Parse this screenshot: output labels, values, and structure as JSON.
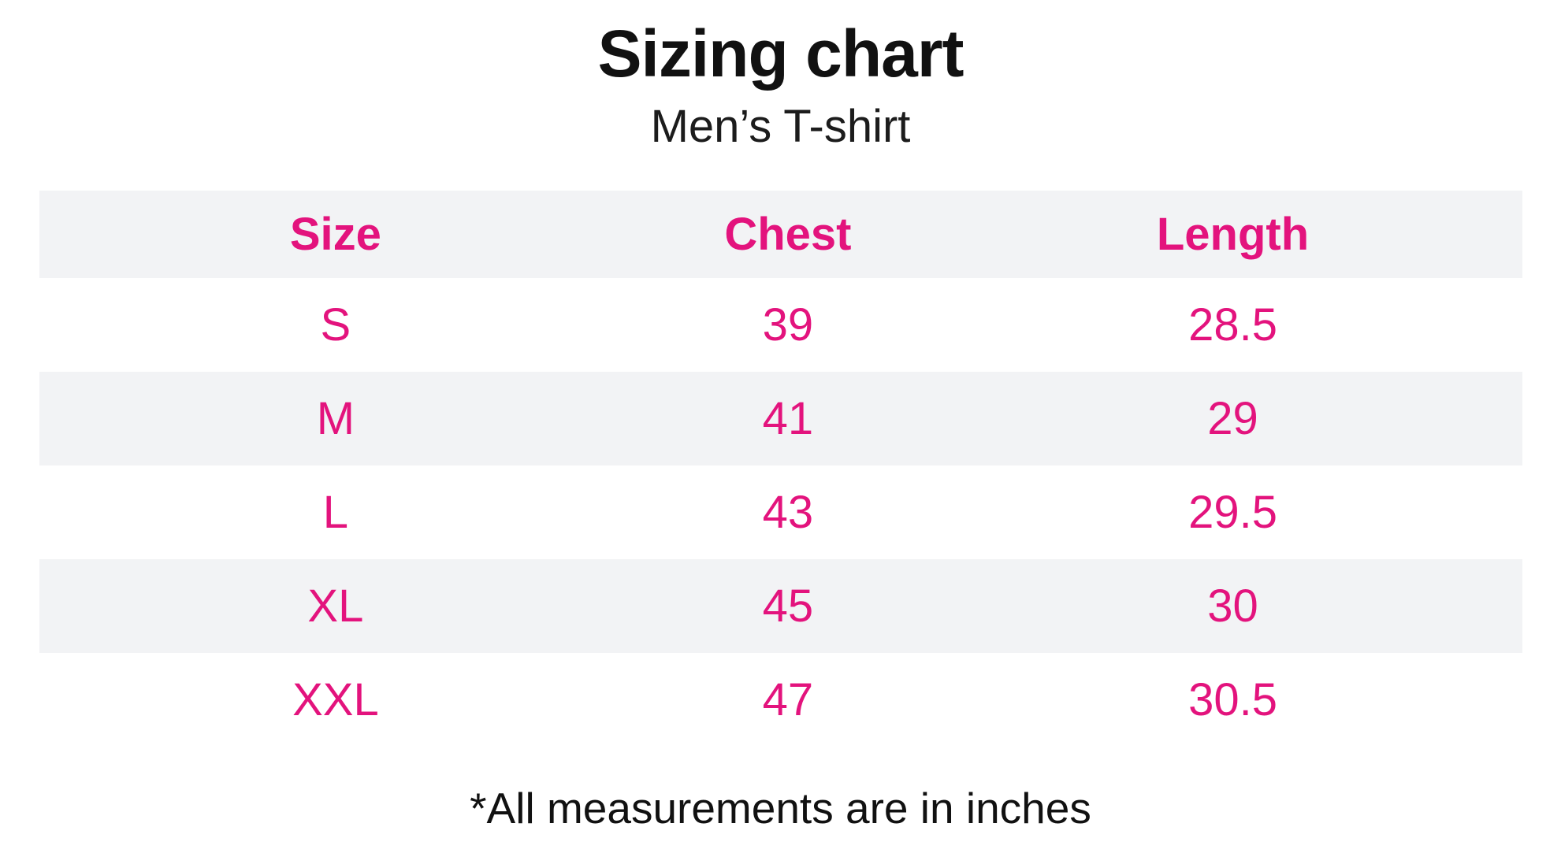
{
  "page": {
    "background": "#ffffff",
    "accent_pink": "#e3137d",
    "alt_row_bg": "#f2f3f5",
    "text_color": "#111111"
  },
  "header": {
    "title": "Sizing chart",
    "subtitle": "Men’s T-shirt"
  },
  "table": {
    "columns": [
      "Size",
      "Chest",
      "Length"
    ],
    "rows": [
      [
        "S",
        "39",
        "28.5"
      ],
      [
        "M",
        "41",
        "29"
      ],
      [
        "L",
        "43",
        "29.5"
      ],
      [
        "XL",
        "45",
        "30"
      ],
      [
        "XXL",
        "47",
        "30.5"
      ]
    ]
  },
  "footnote": "*All measurements are in inches",
  "chart_data": {
    "type": "table",
    "title": "Sizing chart",
    "subtitle": "Men’s T-shirt",
    "columns": [
      "Size",
      "Chest",
      "Length"
    ],
    "rows": [
      [
        "S",
        39,
        28.5
      ],
      [
        "M",
        41,
        29
      ],
      [
        "L",
        43,
        29.5
      ],
      [
        "XL",
        45,
        30
      ],
      [
        "XXL",
        47,
        30.5
      ]
    ],
    "units": "inches",
    "note": "*All measurements are in inches"
  }
}
